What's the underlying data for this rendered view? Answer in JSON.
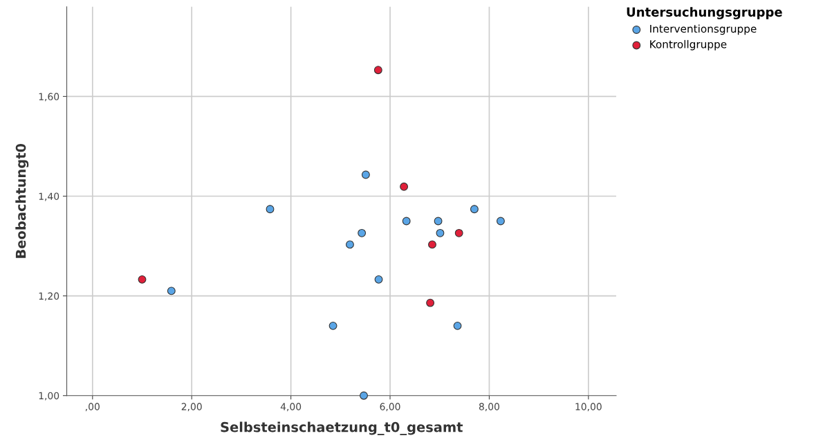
{
  "chart_data": {
    "type": "scatter",
    "xlabel": "Selbsteinschaetzung_t0_gesamt",
    "ylabel": "Beobachtungt0",
    "legend_title": "Untersuchungsgruppe",
    "legend": "top right",
    "grid": true,
    "marker": "circle",
    "xlim": [
      -0.52,
      10.56
    ],
    "ylim": [
      1.0,
      1.78
    ],
    "xticks": [
      {
        "value": 0,
        "label": ",00"
      },
      {
        "value": 2,
        "label": "2,00"
      },
      {
        "value": 4,
        "label": "4,00"
      },
      {
        "value": 6,
        "label": "6,00"
      },
      {
        "value": 8,
        "label": "8,00"
      },
      {
        "value": 10,
        "label": "10,00"
      }
    ],
    "yticks": [
      {
        "value": 1.0,
        "label": "1,00"
      },
      {
        "value": 1.2,
        "label": "1,20"
      },
      {
        "value": 1.4,
        "label": "1,40"
      },
      {
        "value": 1.6,
        "label": "1,60"
      }
    ],
    "series": [
      {
        "name": "Interventionsgruppe",
        "color": "#5aa5e6",
        "x": [
          3.58,
          1.59,
          5.51,
          5.43,
          5.19,
          4.85,
          5.77,
          5.47,
          6.33,
          6.97,
          7.01,
          7.7,
          8.23,
          7.36
        ],
        "values": [
          1.374,
          1.21,
          1.443,
          1.326,
          1.303,
          1.14,
          1.233,
          1.0,
          1.35,
          1.35,
          1.326,
          1.374,
          1.35,
          1.14
        ]
      },
      {
        "name": "Kontrollgruppe",
        "color": "#e0203a",
        "x": [
          1.0,
          5.76,
          6.28,
          6.85,
          7.39,
          6.81
        ],
        "values": [
          1.233,
          1.653,
          1.419,
          1.303,
          1.326,
          1.186
        ]
      }
    ]
  }
}
